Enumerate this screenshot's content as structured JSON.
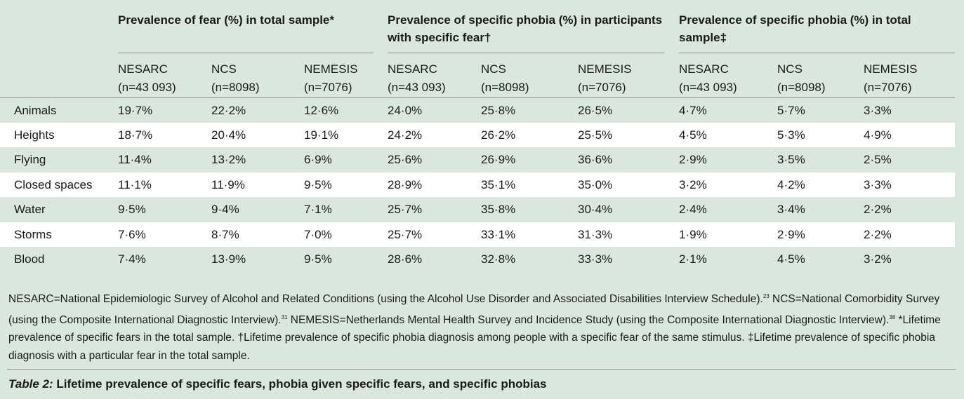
{
  "groups": [
    "Prevalence of fear (%) in total sample*",
    "Prevalence of specific phobia (%) in participants with specific fear†",
    "Prevalence of specific phobia (%) in total sample‡"
  ],
  "columns": [
    {
      "name": "NESARC",
      "n": "(n=43 093)"
    },
    {
      "name": "NCS",
      "n": "(n=8098)"
    },
    {
      "name": "NEMESIS",
      "n": "(n=7076)"
    }
  ],
  "rows": [
    {
      "label": "Animals",
      "values": [
        "19·7%",
        "22·2%",
        "12·6%",
        "24·0%",
        "25·8%",
        "26·5%",
        "4·7%",
        "5·7%",
        "3·3%"
      ]
    },
    {
      "label": "Heights",
      "values": [
        "18·7%",
        "20·4%",
        "19·1%",
        "24·2%",
        "26·2%",
        "25·5%",
        "4·5%",
        "5·3%",
        "4·9%"
      ]
    },
    {
      "label": "Flying",
      "values": [
        "11·4%",
        "13·2%",
        "6·9%",
        "25·6%",
        "26·9%",
        "36·6%",
        "2·9%",
        "3·5%",
        "2·5%"
      ]
    },
    {
      "label": "Closed spaces",
      "values": [
        "11·1%",
        "11·9%",
        "9·5%",
        "28·9%",
        "35·1%",
        "35·0%",
        "3·2%",
        "4·2%",
        "3·3%"
      ]
    },
    {
      "label": "Water",
      "values": [
        "9·5%",
        "9·4%",
        "7·1%",
        "25·7%",
        "35·8%",
        "30·4%",
        "2·4%",
        "3·4%",
        "2·2%"
      ]
    },
    {
      "label": "Storms",
      "values": [
        "7·6%",
        "8·7%",
        "7·0%",
        "25·7%",
        "33·1%",
        "31·3%",
        "1·9%",
        "2·9%",
        "2·2%"
      ]
    },
    {
      "label": "Blood",
      "values": [
        "7·4%",
        "13·9%",
        "9·5%",
        "28·6%",
        "32·8%",
        "33·3%",
        "2·1%",
        "4·5%",
        "3·2%"
      ]
    }
  ],
  "footnote": {
    "p1": "NESARC=National Epidemiologic Survey of Alcohol and Related Conditions (using the Alcohol Use Disorder and Associated Disabilities Interview Schedule).",
    "ref1": "23",
    "p2": " NCS=National Comorbidity Survey (using the Composite International Diagnostic Interview).",
    "ref2": "31",
    "p3": " NEMESIS=Netherlands Mental Health Survey and Incidence Study (using the Composite International Diagnostic Interview).",
    "ref3": "38",
    "p4": " *Lifetime prevalence of specific fears in the total sample. †Lifetime prevalence of specific phobia diagnosis among people with a specific fear of the same stimulus. ‡Lifetime prevalence of specific phobia diagnosis with a particular fear in the total sample."
  },
  "caption": {
    "label": "Table 2:",
    "text": " Lifetime prevalence of specific fears, phobia given specific fears, and specific phobias"
  }
}
